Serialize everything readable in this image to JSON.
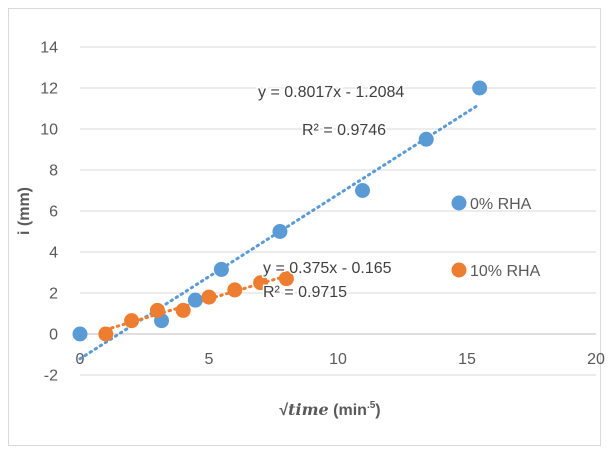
{
  "chart_data": {
    "type": "scatter",
    "xlabel_symbol": "√",
    "xlabel_var": "time",
    "xlabel_unit": " (min",
    "xlabel_sup": ".5",
    "xlabel_close": ")",
    "ylabel": "i (mm)",
    "xlim": [
      0,
      20
    ],
    "ylim": [
      -2,
      14
    ],
    "x_ticks": [
      "0",
      "5",
      "10",
      "15",
      "20"
    ],
    "y_ticks": [
      "-2",
      "0",
      "2",
      "4",
      "6",
      "8",
      "10",
      "12",
      "14"
    ],
    "grid": "horizontal",
    "legend_position": "right",
    "series": [
      {
        "name": "0% RHA",
        "color": "#5B9BD5",
        "x": [
          0,
          3.16,
          4.47,
          5.48,
          7.75,
          10.95,
          13.42,
          15.49
        ],
        "y": [
          0,
          0.65,
          1.65,
          3.15,
          5.0,
          7.0,
          9.5,
          12.0
        ],
        "trendline": {
          "slope": 0.8017,
          "intercept": -1.2084,
          "equation": "y = 0.8017x - 1.2084",
          "r2": "R² = 0.9746",
          "x_range": [
            0,
            15.49
          ]
        }
      },
      {
        "name": "10% RHA",
        "color": "#ED7D31",
        "x": [
          1,
          2,
          3,
          4,
          5,
          6,
          7,
          8
        ],
        "y": [
          0,
          0.65,
          1.15,
          1.15,
          1.8,
          2.15,
          2.5,
          2.7
        ],
        "trendline": {
          "slope": 0.375,
          "intercept": -0.165,
          "equation": "y = 0.375x - 0.165",
          "r2": "R² = 0.9715",
          "x_range": [
            1,
            8
          ]
        }
      }
    ]
  }
}
